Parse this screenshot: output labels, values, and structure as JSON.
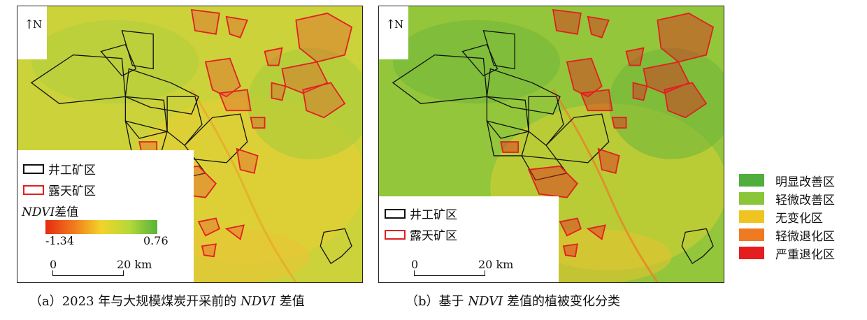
{
  "map_a": {
    "north_label": "N",
    "legend": {
      "well_mine": "井工矿区",
      "open_pit": "露天矿区"
    },
    "ndvi_title_italic": "NDVI",
    "ndvi_title_rest": "差值",
    "ndvi_min": "-1.34",
    "ndvi_max": "0.76",
    "scale_zero": "0",
    "scale_dist": "20 km",
    "colors": {
      "well_outline": "#111111",
      "open_outline": "#e02020"
    }
  },
  "map_b": {
    "north_label": "N",
    "legend": {
      "well_mine": "井工矿区",
      "open_pit": "露天矿区"
    },
    "scale_zero": "0",
    "scale_dist": "20 km"
  },
  "class_legend": [
    {
      "label": "明显改善区",
      "color": "#4fae3c"
    },
    {
      "label": "轻微改善区",
      "color": "#8ac53a"
    },
    {
      "label": "无变化区",
      "color": "#f0c420"
    },
    {
      "label": "轻微退化区",
      "color": "#ee7a22"
    },
    {
      "label": "严重退化区",
      "color": "#e41e1e"
    }
  ],
  "captions": {
    "a_prefix": "（a）2023 年与大规模煤炭开采前的 ",
    "a_italic": "NDVI",
    "a_suffix": " 差值",
    "b_prefix": "（b）基于 ",
    "b_italic": "NDVI",
    "b_suffix": " 差值的植被变化分类"
  }
}
